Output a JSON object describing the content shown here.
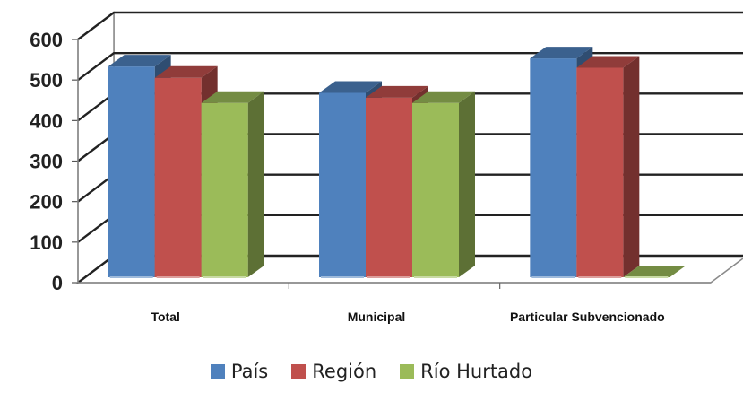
{
  "chart_data": {
    "type": "bar",
    "categories": [
      "Total",
      "Municipal",
      "Particular Subvencionado"
    ],
    "series": [
      {
        "name": "País",
        "values": [
          520,
          455,
          540
        ],
        "color": "#4F81BD"
      },
      {
        "name": "Región",
        "values": [
          492,
          443,
          517
        ],
        "color": "#C0504D"
      },
      {
        "name": "Río Hurtado",
        "values": [
          430,
          430,
          0
        ],
        "color": "#9BBB59"
      }
    ],
    "ylim": [
      0,
      600
    ],
    "yticks": [
      "0",
      "100",
      "200",
      "300",
      "400",
      "500",
      "600"
    ],
    "grid": true,
    "legend_position": "bottom",
    "style": "3d-clustered-column"
  }
}
